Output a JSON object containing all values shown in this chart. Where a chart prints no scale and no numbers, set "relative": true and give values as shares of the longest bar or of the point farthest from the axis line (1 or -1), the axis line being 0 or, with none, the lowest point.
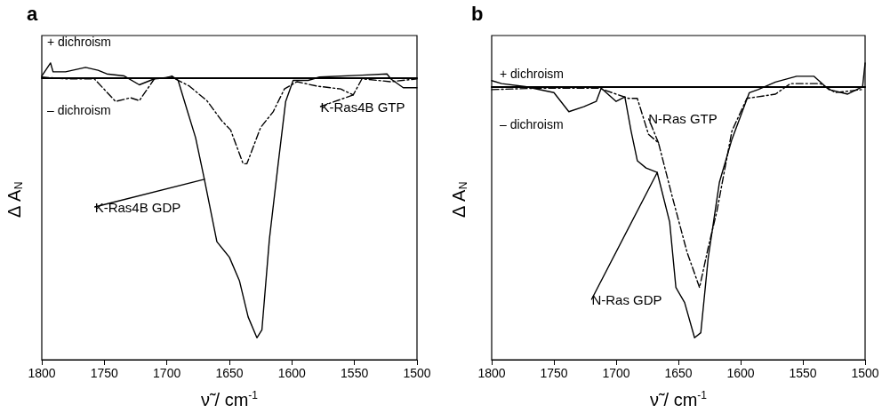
{
  "chart_data": [
    {
      "type": "line",
      "title": "a",
      "xlabel": "ν̃ / cm$^{-1}$",
      "ylabel": "Δ A$_{N}$",
      "relative": true,
      "xlim": [
        1800,
        1500
      ],
      "xticks": [
        1800,
        1750,
        1700,
        1650,
        1600,
        1550,
        1500
      ],
      "grid": false,
      "legend": false,
      "annotations": [
        "+ dichroism",
        "– dichroism"
      ],
      "series": [
        {
          "name": "K-Ras4B GDP",
          "color": "#000000",
          "line_style": "solid",
          "x": [
            1800,
            1793,
            1791,
            1781,
            1765,
            1755,
            1748,
            1734,
            1722,
            1710,
            1701,
            1696,
            1691,
            1684,
            1677,
            1670,
            1660,
            1650,
            1642,
            1635,
            1628,
            1624,
            1618,
            1611,
            1605,
            1599,
            1587,
            1578,
            1544,
            1524,
            1521,
            1511,
            1500
          ],
          "values": [
            0.008,
            0.058,
            0.024,
            0.024,
            0.041,
            0.03,
            0.016,
            0.008,
            -0.026,
            -0.003,
            0,
            0.008,
            -0.009,
            -0.12,
            -0.23,
            -0.39,
            -0.63,
            -0.69,
            -0.78,
            -0.92,
            -1,
            -0.97,
            -0.62,
            -0.33,
            -0.09,
            -0.009,
            -0.009,
            0.004,
            0.011,
            0.016,
            -0.003,
            -0.037,
            -0.037
          ]
        },
        {
          "name": "K-Ras4B GTP",
          "color": "#000000",
          "line_style": "dashed",
          "x": [
            1800,
            1781,
            1758,
            1741,
            1729,
            1722,
            1710,
            1696,
            1682,
            1668,
            1656,
            1649,
            1639,
            1636,
            1625,
            1615,
            1606,
            1596,
            1580,
            1561,
            1551,
            1544,
            1521,
            1500
          ],
          "values": [
            0.004,
            -0.003,
            -0.003,
            -0.09,
            -0.076,
            -0.087,
            -0.003,
            0.004,
            -0.031,
            -0.087,
            -0.165,
            -0.2,
            -0.33,
            -0.33,
            -0.19,
            -0.13,
            -0.042,
            -0.014,
            -0.031,
            -0.042,
            -0.065,
            -0.003,
            -0.014,
            -0.003
          ]
        }
      ]
    },
    {
      "type": "line",
      "title": "b",
      "xlabel": "ν̃ / cm$^{-1}$",
      "ylabel": "Δ A$_{N}$",
      "relative": true,
      "xlim": [
        1800,
        1500
      ],
      "xticks": [
        1800,
        1750,
        1700,
        1650,
        1600,
        1550,
        1500
      ],
      "grid": false,
      "legend": false,
      "annotations": [
        "+ dichroism",
        "– dichroism"
      ],
      "series": [
        {
          "name": "N-Ras GDP",
          "color": "#000000",
          "line_style": "solid",
          "x": [
            1800,
            1792,
            1773,
            1750,
            1738,
            1726,
            1716,
            1712,
            1700,
            1693,
            1688,
            1683,
            1676,
            1667,
            1657,
            1652,
            1645,
            1637,
            1632,
            1626,
            1617,
            1607,
            1593,
            1586,
            1572,
            1555,
            1541,
            1529,
            1514,
            1502,
            1500
          ],
          "values": [
            0.024,
            0.012,
            0,
            -0.024,
            -0.1,
            -0.08,
            -0.059,
            -0.006,
            -0.059,
            -0.041,
            -0.177,
            -0.295,
            -0.324,
            -0.342,
            -0.54,
            -0.8,
            -0.86,
            -1,
            -0.98,
            -0.68,
            -0.38,
            -0.21,
            -0.024,
            -0.012,
            0.018,
            0.041,
            0.041,
            -0.012,
            -0.03,
            0,
            0.094
          ]
        },
        {
          "name": "N-Ras GTP",
          "color": "#000000",
          "line_style": "dashed",
          "x": [
            1800,
            1761,
            1714,
            1690,
            1683,
            1674,
            1666,
            1655,
            1643,
            1633,
            1626,
            1619,
            1607,
            1595,
            1572,
            1560,
            1536,
            1524,
            1503
          ],
          "values": [
            -0.012,
            -0.006,
            -0.006,
            -0.047,
            -0.047,
            -0.19,
            -0.224,
            -0.437,
            -0.66,
            -0.8,
            -0.64,
            -0.495,
            -0.177,
            -0.047,
            -0.03,
            0.012,
            0.012,
            -0.024,
            -0.012
          ]
        }
      ]
    }
  ]
}
